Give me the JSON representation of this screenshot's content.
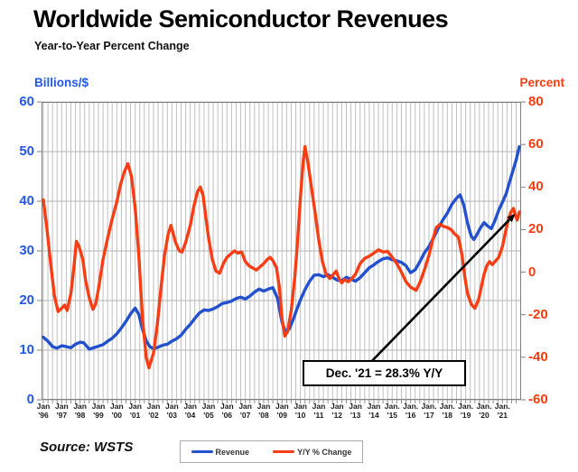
{
  "title": "Worldwide Semiconductor Revenues",
  "subtitle": "Year-to-Year Percent Change",
  "source": "Source: WSTS",
  "left_axis": {
    "title": "Billions/$",
    "color": "#2257e8",
    "ticks": [
      60,
      50,
      40,
      30,
      20,
      10,
      0
    ],
    "min": 0,
    "max": 60
  },
  "right_axis": {
    "title": "Percent",
    "color": "#f83c10",
    "ticks": [
      80,
      60,
      40,
      20,
      0,
      -20,
      -40,
      -60
    ],
    "min": -60,
    "max": 80
  },
  "legend": {
    "items": [
      {
        "label": "Revenue",
        "color": "#2351cе"
      },
      {
        "label": "Y/Y % Change",
        "color": "#f63d14"
      }
    ]
  },
  "chart_data": {
    "type": "line",
    "title": "Worldwide Semiconductor Revenues",
    "subtitle": "Year-to-Year Percent Change",
    "x_range": [
      1996.0,
      2022.0
    ],
    "grid": {
      "vertical_interval_years": 0.25,
      "horizontal_interval_left_axis": 10,
      "color": "#bfbfbf"
    },
    "x_ticks": [
      {
        "m": "Jan",
        "y": "'96",
        "t": 1996
      },
      {
        "m": "Jan",
        "y": "'97",
        "t": 1997
      },
      {
        "m": "Jan",
        "y": "'98",
        "t": 1998
      },
      {
        "m": "Jan",
        "y": "'99",
        "t": 1999
      },
      {
        "m": "Jan",
        "y": "'00",
        "t": 2000
      },
      {
        "m": "Jan",
        "y": "'01",
        "t": 2001
      },
      {
        "m": "Jan",
        "y": "'02",
        "t": 2002
      },
      {
        "m": "Jan",
        "y": "'03",
        "t": 2003
      },
      {
        "m": "Jan",
        "y": "'04",
        "t": 2004
      },
      {
        "m": "Jan",
        "y": "'05",
        "t": 2005
      },
      {
        "m": "Jan",
        "y": "'06",
        "t": 2006
      },
      {
        "m": "Jan",
        "y": "'07",
        "t": 2007
      },
      {
        "m": "Jan",
        "y": "'08",
        "t": 2008
      },
      {
        "m": "Jan",
        "y": "'09",
        "t": 2009
      },
      {
        "m": "Jan",
        "y": "'10",
        "t": 2010
      },
      {
        "m": "Jan",
        "y": "'11",
        "t": 2011
      },
      {
        "m": "Jan",
        "y": "'12",
        "t": 2012
      },
      {
        "m": "Jan",
        "y": "'13",
        "t": 2013
      },
      {
        "m": "Jan",
        "y": "'14",
        "t": 2014
      },
      {
        "m": "Jan.",
        "y": "'15",
        "t": 2015
      },
      {
        "m": "Jan.",
        "y": "'16",
        "t": 2016
      },
      {
        "m": "Jan.",
        "y": "'17",
        "t": 2017
      },
      {
        "m": "Jan.",
        "y": "'18",
        "t": 2018
      },
      {
        "m": "Jan.",
        "y": "'19",
        "t": 2019
      },
      {
        "m": "Jan.",
        "y": "'20",
        "t": 2020
      },
      {
        "m": "Jan.",
        "y": "'21",
        "t": 2021
      }
    ],
    "annotation": {
      "text": "Dec. '21 = 28.3% Y/Y",
      "points_to": {
        "x": 2021.92,
        "y_right_axis": 28.3
      },
      "arrow": {
        "from": [
          2013.89,
          -41.8
        ],
        "to": [
          2021.62,
          26.8
        ]
      }
    },
    "series": [
      {
        "name": "Revenue",
        "axis": "left",
        "unit": "billions USD (3-mo avg)",
        "color": "#2351ce",
        "points": [
          [
            1996.0,
            12.6
          ],
          [
            1996.25,
            11.8
          ],
          [
            1996.5,
            10.7
          ],
          [
            1996.75,
            10.4
          ],
          [
            1997.0,
            10.9
          ],
          [
            1997.25,
            10.7
          ],
          [
            1997.5,
            10.5
          ],
          [
            1997.75,
            11.2
          ],
          [
            1998.0,
            11.6
          ],
          [
            1998.2,
            11.5
          ],
          [
            1998.5,
            10.2
          ],
          [
            1998.75,
            10.5
          ],
          [
            1999.0,
            10.8
          ],
          [
            1999.25,
            11.1
          ],
          [
            1999.5,
            11.8
          ],
          [
            1999.75,
            12.4
          ],
          [
            2000.0,
            13.3
          ],
          [
            2000.25,
            14.5
          ],
          [
            2000.5,
            15.8
          ],
          [
            2000.75,
            17.3
          ],
          [
            2001.0,
            18.5
          ],
          [
            2001.2,
            17.2
          ],
          [
            2001.4,
            14.2
          ],
          [
            2001.6,
            11.9
          ],
          [
            2001.8,
            10.7
          ],
          [
            2002.0,
            10.3
          ],
          [
            2002.25,
            10.6
          ],
          [
            2002.5,
            11.0
          ],
          [
            2002.75,
            11.2
          ],
          [
            2003.0,
            11.8
          ],
          [
            2003.25,
            12.3
          ],
          [
            2003.5,
            13.0
          ],
          [
            2003.75,
            14.2
          ],
          [
            2004.0,
            15.2
          ],
          [
            2004.25,
            16.4
          ],
          [
            2004.5,
            17.5
          ],
          [
            2004.75,
            18.1
          ],
          [
            2005.0,
            18.0
          ],
          [
            2005.25,
            18.3
          ],
          [
            2005.5,
            18.8
          ],
          [
            2005.75,
            19.4
          ],
          [
            2006.0,
            19.6
          ],
          [
            2006.25,
            19.9
          ],
          [
            2006.5,
            20.4
          ],
          [
            2006.75,
            20.7
          ],
          [
            2007.0,
            20.3
          ],
          [
            2007.25,
            20.9
          ],
          [
            2007.5,
            21.7
          ],
          [
            2007.75,
            22.3
          ],
          [
            2008.0,
            21.9
          ],
          [
            2008.25,
            22.3
          ],
          [
            2008.5,
            22.6
          ],
          [
            2008.75,
            20.5
          ],
          [
            2009.0,
            15.6
          ],
          [
            2009.2,
            13.6
          ],
          [
            2009.4,
            14.3
          ],
          [
            2009.6,
            16.1
          ],
          [
            2009.8,
            18.2
          ],
          [
            2010.0,
            20.1
          ],
          [
            2010.25,
            22.2
          ],
          [
            2010.5,
            23.9
          ],
          [
            2010.75,
            25.1
          ],
          [
            2011.0,
            25.2
          ],
          [
            2011.25,
            24.8
          ],
          [
            2011.5,
            25.2
          ],
          [
            2011.75,
            24.7
          ],
          [
            2012.0,
            24.1
          ],
          [
            2012.25,
            24.0
          ],
          [
            2012.5,
            24.7
          ],
          [
            2012.75,
            24.3
          ],
          [
            2013.0,
            23.9
          ],
          [
            2013.25,
            24.6
          ],
          [
            2013.5,
            25.6
          ],
          [
            2013.75,
            26.6
          ],
          [
            2014.0,
            27.2
          ],
          [
            2014.25,
            27.9
          ],
          [
            2014.5,
            28.4
          ],
          [
            2014.75,
            28.6
          ],
          [
            2015.0,
            28.2
          ],
          [
            2015.25,
            28.0
          ],
          [
            2015.5,
            27.7
          ],
          [
            2015.75,
            27.0
          ],
          [
            2016.0,
            25.6
          ],
          [
            2016.25,
            26.2
          ],
          [
            2016.5,
            27.8
          ],
          [
            2016.75,
            29.6
          ],
          [
            2017.0,
            30.9
          ],
          [
            2017.25,
            32.6
          ],
          [
            2017.5,
            34.5
          ],
          [
            2017.75,
            36.2
          ],
          [
            2018.0,
            37.6
          ],
          [
            2018.25,
            39.4
          ],
          [
            2018.5,
            40.6
          ],
          [
            2018.7,
            41.3
          ],
          [
            2018.9,
            39.2
          ],
          [
            2019.1,
            35.6
          ],
          [
            2019.3,
            33.0
          ],
          [
            2019.45,
            32.3
          ],
          [
            2019.6,
            33.2
          ],
          [
            2019.8,
            34.6
          ],
          [
            2020.0,
            35.7
          ],
          [
            2020.2,
            35.0
          ],
          [
            2020.4,
            34.5
          ],
          [
            2020.6,
            36.2
          ],
          [
            2020.8,
            38.2
          ],
          [
            2021.0,
            39.8
          ],
          [
            2021.2,
            41.5
          ],
          [
            2021.4,
            44.0
          ],
          [
            2021.6,
            46.5
          ],
          [
            2021.75,
            48.3
          ],
          [
            2021.92,
            51.0
          ]
        ]
      },
      {
        "name": "Y/Y % Change",
        "axis": "right",
        "unit": "percent",
        "color": "#f63d14",
        "points": [
          [
            1996.0,
            34
          ],
          [
            1996.2,
            20
          ],
          [
            1996.4,
            4
          ],
          [
            1996.6,
            -11
          ],
          [
            1996.8,
            -18.5
          ],
          [
            1997.0,
            -17
          ],
          [
            1997.15,
            -15.5
          ],
          [
            1997.3,
            -18
          ],
          [
            1997.5,
            -10
          ],
          [
            1997.65,
            1
          ],
          [
            1997.8,
            14.5
          ],
          [
            1997.95,
            12
          ],
          [
            1998.15,
            6
          ],
          [
            1998.3,
            -4
          ],
          [
            1998.5,
            -12
          ],
          [
            1998.7,
            -17.5
          ],
          [
            1998.85,
            -15
          ],
          [
            1999.0,
            -8
          ],
          [
            1999.25,
            6
          ],
          [
            1999.5,
            16
          ],
          [
            1999.75,
            25
          ],
          [
            2000.0,
            33
          ],
          [
            2000.2,
            41
          ],
          [
            2000.4,
            47
          ],
          [
            2000.6,
            51
          ],
          [
            2000.8,
            45
          ],
          [
            2001.0,
            30
          ],
          [
            2001.2,
            8
          ],
          [
            2001.4,
            -22
          ],
          [
            2001.6,
            -40
          ],
          [
            2001.75,
            -45
          ],
          [
            2002.0,
            -38
          ],
          [
            2002.2,
            -25
          ],
          [
            2002.4,
            -8
          ],
          [
            2002.6,
            8
          ],
          [
            2002.8,
            18
          ],
          [
            2002.95,
            22
          ],
          [
            2003.2,
            14
          ],
          [
            2003.4,
            10
          ],
          [
            2003.55,
            9.5
          ],
          [
            2003.75,
            14
          ],
          [
            2004.0,
            22
          ],
          [
            2004.2,
            31
          ],
          [
            2004.4,
            38
          ],
          [
            2004.55,
            40
          ],
          [
            2004.7,
            36
          ],
          [
            2004.85,
            26
          ],
          [
            2005.0,
            16
          ],
          [
            2005.2,
            6
          ],
          [
            2005.4,
            0.5
          ],
          [
            2005.6,
            -0.5
          ],
          [
            2005.8,
            4
          ],
          [
            2006.0,
            7
          ],
          [
            2006.2,
            8.5
          ],
          [
            2006.4,
            10
          ],
          [
            2006.6,
            9
          ],
          [
            2006.8,
            9.5
          ],
          [
            2007.0,
            5
          ],
          [
            2007.2,
            3
          ],
          [
            2007.4,
            2
          ],
          [
            2007.6,
            1
          ],
          [
            2007.8,
            2.5
          ],
          [
            2008.0,
            4
          ],
          [
            2008.2,
            6
          ],
          [
            2008.35,
            7
          ],
          [
            2008.5,
            5.5
          ],
          [
            2008.7,
            2
          ],
          [
            2008.85,
            -7
          ],
          [
            2009.0,
            -22
          ],
          [
            2009.15,
            -30
          ],
          [
            2009.3,
            -28
          ],
          [
            2009.5,
            -18
          ],
          [
            2009.7,
            -2
          ],
          [
            2009.85,
            15
          ],
          [
            2010.0,
            35
          ],
          [
            2010.15,
            52
          ],
          [
            2010.25,
            59
          ],
          [
            2010.4,
            52
          ],
          [
            2010.6,
            40
          ],
          [
            2010.8,
            28
          ],
          [
            2011.0,
            15
          ],
          [
            2011.2,
            5
          ],
          [
            2011.4,
            -1
          ],
          [
            2011.6,
            -3
          ],
          [
            2011.8,
            -1
          ],
          [
            2011.95,
            0.5
          ],
          [
            2012.1,
            -3
          ],
          [
            2012.25,
            -5
          ],
          [
            2012.4,
            -3.5
          ],
          [
            2012.6,
            -4.5
          ],
          [
            2012.8,
            -3
          ],
          [
            2013.0,
            -1
          ],
          [
            2013.25,
            4
          ],
          [
            2013.5,
            6.5
          ],
          [
            2013.75,
            7.5
          ],
          [
            2014.0,
            9
          ],
          [
            2014.25,
            10.5
          ],
          [
            2014.5,
            9.5
          ],
          [
            2014.75,
            9.8
          ],
          [
            2015.0,
            7
          ],
          [
            2015.25,
            4
          ],
          [
            2015.5,
            0
          ],
          [
            2015.75,
            -4.5
          ],
          [
            2016.0,
            -7
          ],
          [
            2016.3,
            -8.5
          ],
          [
            2016.5,
            -5
          ],
          [
            2016.75,
            1
          ],
          [
            2017.0,
            8
          ],
          [
            2017.2,
            15
          ],
          [
            2017.4,
            21
          ],
          [
            2017.6,
            22.5
          ],
          [
            2017.8,
            21.5
          ],
          [
            2018.0,
            21
          ],
          [
            2018.2,
            20
          ],
          [
            2018.4,
            18
          ],
          [
            2018.6,
            16.5
          ],
          [
            2018.8,
            8
          ],
          [
            2018.95,
            -2
          ],
          [
            2019.1,
            -10
          ],
          [
            2019.3,
            -15
          ],
          [
            2019.5,
            -17
          ],
          [
            2019.7,
            -13
          ],
          [
            2019.85,
            -7
          ],
          [
            2020.0,
            -1
          ],
          [
            2020.15,
            3
          ],
          [
            2020.3,
            5
          ],
          [
            2020.45,
            3.5
          ],
          [
            2020.6,
            5
          ],
          [
            2020.8,
            7
          ],
          [
            2021.0,
            12
          ],
          [
            2021.15,
            18
          ],
          [
            2021.3,
            24
          ],
          [
            2021.45,
            28
          ],
          [
            2021.6,
            30
          ],
          [
            2021.7,
            27
          ],
          [
            2021.8,
            24.5
          ],
          [
            2021.92,
            28.3
          ]
        ]
      }
    ]
  }
}
